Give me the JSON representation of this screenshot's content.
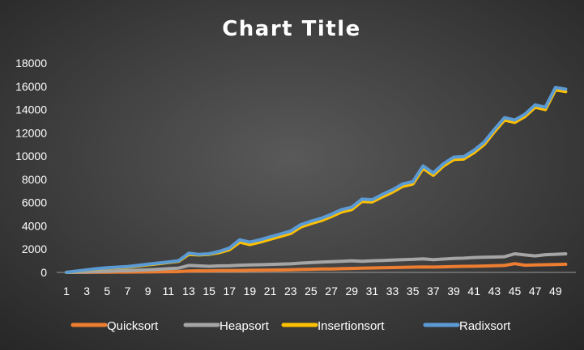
{
  "chart_data": {
    "type": "line",
    "title": "Chart Title",
    "xlabel": "",
    "ylabel": "",
    "ylim": [
      0,
      18000
    ],
    "yticks": [
      0,
      2000,
      4000,
      6000,
      8000,
      10000,
      12000,
      14000,
      16000,
      18000
    ],
    "x": [
      1,
      2,
      3,
      4,
      5,
      6,
      7,
      8,
      9,
      10,
      11,
      12,
      13,
      14,
      15,
      16,
      17,
      18,
      19,
      20,
      21,
      22,
      23,
      24,
      25,
      26,
      27,
      28,
      29,
      30,
      31,
      32,
      33,
      34,
      35,
      36,
      37,
      38,
      39,
      40,
      41,
      42,
      43,
      44,
      45,
      46,
      47,
      48,
      49,
      50
    ],
    "xtick_labels": [
      "1",
      "3",
      "5",
      "7",
      "9",
      "11",
      "13",
      "15",
      "17",
      "19",
      "21",
      "23",
      "25",
      "27",
      "29",
      "31",
      "33",
      "35",
      "37",
      "39",
      "41",
      "43",
      "45",
      "47",
      "49"
    ],
    "grid": false,
    "legend_position": "bottom",
    "series": [
      {
        "name": "Quicksort",
        "color": "#ED7D31",
        "values": [
          0,
          5,
          10,
          15,
          20,
          25,
          30,
          35,
          40,
          50,
          60,
          70,
          120,
          140,
          130,
          150,
          160,
          170,
          180,
          190,
          200,
          210,
          230,
          250,
          270,
          290,
          300,
          320,
          340,
          360,
          380,
          400,
          420,
          440,
          450,
          470,
          460,
          480,
          500,
          520,
          530,
          550,
          580,
          600,
          750,
          620,
          640,
          660,
          680,
          700
        ]
      },
      {
        "name": "Heapsort",
        "color": "#A5A5A5",
        "values": [
          0,
          20,
          40,
          70,
          100,
          130,
          160,
          190,
          230,
          270,
          320,
          370,
          600,
          560,
          520,
          560,
          580,
          620,
          640,
          660,
          690,
          710,
          740,
          800,
          840,
          880,
          920,
          960,
          1000,
          960,
          1000,
          1020,
          1060,
          1100,
          1120,
          1160,
          1100,
          1150,
          1200,
          1220,
          1280,
          1300,
          1320,
          1350,
          1600,
          1500,
          1420,
          1520,
          1560,
          1600
        ]
      },
      {
        "name": "Insertionsort",
        "color": "#FFC000",
        "values": [
          0,
          100,
          200,
          300,
          380,
          420,
          450,
          550,
          650,
          750,
          850,
          950,
          1550,
          1500,
          1550,
          1700,
          1950,
          2600,
          2400,
          2600,
          2850,
          3100,
          3350,
          3900,
          4200,
          4450,
          4800,
          5200,
          5400,
          6100,
          6050,
          6500,
          6900,
          7400,
          7600,
          8950,
          8350,
          9150,
          9700,
          9750,
          10300,
          11000,
          12100,
          13100,
          12900,
          13400,
          14200,
          14000,
          15700,
          15550
        ]
      },
      {
        "name": "Radixsort",
        "color": "#5B9BD5",
        "values": [
          0,
          120,
          220,
          320,
          400,
          450,
          500,
          600,
          700,
          800,
          900,
          1000,
          1650,
          1550,
          1600,
          1800,
          2100,
          2800,
          2600,
          2800,
          3050,
          3300,
          3550,
          4100,
          4400,
          4650,
          5000,
          5400,
          5600,
          6300,
          6250,
          6700,
          7100,
          7600,
          7800,
          9150,
          8550,
          9350,
          9900,
          9950,
          10500,
          11200,
          12300,
          13300,
          13100,
          13600,
          14400,
          14200,
          15900,
          15750
        ]
      }
    ]
  }
}
